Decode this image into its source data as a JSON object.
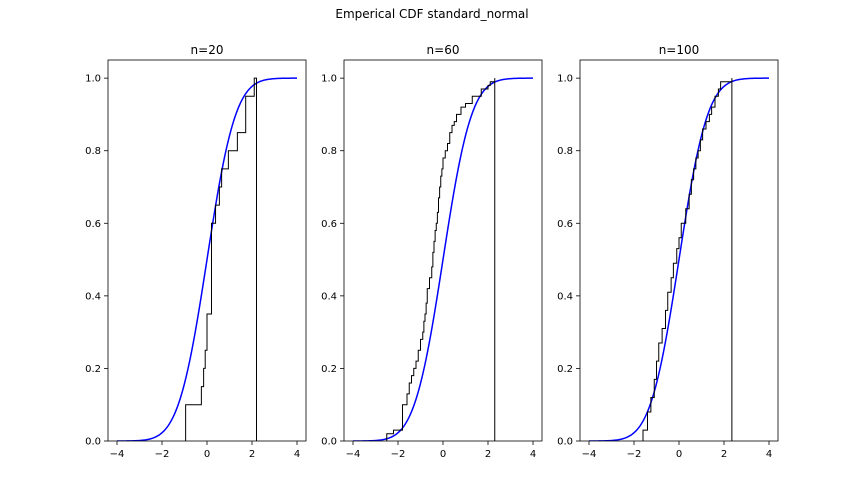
{
  "figure": {
    "title": "Emperical CDF standard_normal"
  },
  "chart_data": [
    {
      "type": "line",
      "title": "n=20",
      "xlim": [
        -4.4,
        4.4
      ],
      "ylim": [
        0.0,
        1.05
      ],
      "xticks": [
        -4,
        -2,
        0,
        2,
        4
      ],
      "xtick_labels": [
        "−4",
        "−2",
        "0",
        "2",
        "4"
      ],
      "yticks": [
        0.0,
        0.2,
        0.4,
        0.6,
        0.8,
        1.0
      ],
      "ytick_labels": [
        "0.0",
        "0.2",
        "0.4",
        "0.6",
        "0.8",
        "1.0"
      ],
      "grid": false,
      "series": [
        {
          "kind": "theoretical_cdf",
          "color": "#0000ff",
          "x_range": [
            -4,
            4
          ]
        },
        {
          "kind": "empirical_cdf_step",
          "color": "#000000",
          "x": [
            -0.95,
            -0.25,
            -0.15,
            -0.08,
            0.0,
            0.2,
            0.38,
            0.55,
            0.65,
            0.95,
            1.35,
            1.72,
            2.1,
            2.2
          ],
          "y": [
            0.1,
            0.15,
            0.2,
            0.25,
            0.35,
            0.6,
            0.65,
            0.7,
            0.75,
            0.8,
            0.85,
            0.95,
            1.0,
            0.0
          ]
        }
      ]
    },
    {
      "type": "line",
      "title": "n=60",
      "xlim": [
        -4.4,
        4.4
      ],
      "ylim": [
        0.0,
        1.05
      ],
      "xticks": [
        -4,
        -2,
        0,
        2,
        4
      ],
      "xtick_labels": [
        "−4",
        "−2",
        "0",
        "2",
        "4"
      ],
      "yticks": [
        0.0,
        0.2,
        0.4,
        0.6,
        0.8,
        1.0
      ],
      "ytick_labels": [
        "0.0",
        "0.2",
        "0.4",
        "0.6",
        "0.8",
        "1.0"
      ],
      "grid": false,
      "series": [
        {
          "kind": "theoretical_cdf",
          "color": "#0000ff",
          "x_range": [
            -4,
            4
          ]
        },
        {
          "kind": "empirical_cdf_step",
          "color": "#000000",
          "x": [
            -2.5,
            -2.2,
            -1.8,
            -1.6,
            -1.5,
            -1.4,
            -1.3,
            -1.2,
            -1.1,
            -1.0,
            -0.9,
            -0.85,
            -0.8,
            -0.75,
            -0.7,
            -0.6,
            -0.5,
            -0.45,
            -0.4,
            -0.35,
            -0.3,
            -0.25,
            -0.2,
            -0.15,
            -0.1,
            -0.05,
            0.0,
            0.1,
            0.2,
            0.3,
            0.4,
            0.5,
            0.6,
            0.8,
            1.0,
            1.3,
            1.7,
            2.0,
            2.1,
            2.2,
            2.3,
            2.3
          ],
          "y": [
            0.02,
            0.03,
            0.1,
            0.13,
            0.16,
            0.18,
            0.2,
            0.22,
            0.25,
            0.28,
            0.3,
            0.33,
            0.35,
            0.38,
            0.42,
            0.45,
            0.48,
            0.52,
            0.55,
            0.58,
            0.6,
            0.63,
            0.67,
            0.7,
            0.73,
            0.75,
            0.78,
            0.8,
            0.82,
            0.85,
            0.87,
            0.88,
            0.9,
            0.92,
            0.93,
            0.95,
            0.97,
            0.98,
            0.99,
            0.99,
            1.0,
            0.0
          ]
        }
      ]
    },
    {
      "type": "line",
      "title": "n=100",
      "xlim": [
        -4.4,
        4.4
      ],
      "ylim": [
        0.0,
        1.05
      ],
      "xticks": [
        -4,
        -2,
        0,
        2,
        4
      ],
      "xtick_labels": [
        "−4",
        "−2",
        "0",
        "2",
        "4"
      ],
      "yticks": [
        0.0,
        0.2,
        0.4,
        0.6,
        0.8,
        1.0
      ],
      "ytick_labels": [
        "0.0",
        "0.2",
        "0.4",
        "0.6",
        "0.8",
        "1.0"
      ],
      "grid": false,
      "series": [
        {
          "kind": "theoretical_cdf",
          "color": "#0000ff",
          "x_range": [
            -4,
            4
          ]
        },
        {
          "kind": "empirical_cdf_step",
          "color": "#000000",
          "x": [
            -1.6,
            -1.4,
            -1.25,
            -1.1,
            -1.0,
            -0.9,
            -0.75,
            -0.6,
            -0.5,
            -0.35,
            -0.25,
            -0.1,
            0.0,
            0.1,
            0.3,
            0.45,
            0.55,
            0.65,
            0.75,
            0.85,
            0.95,
            1.05,
            1.2,
            1.35,
            1.45,
            1.6,
            1.75,
            1.85,
            2.2,
            2.35,
            2.35
          ],
          "y": [
            0.03,
            0.08,
            0.12,
            0.17,
            0.22,
            0.27,
            0.31,
            0.36,
            0.41,
            0.45,
            0.49,
            0.53,
            0.56,
            0.6,
            0.64,
            0.68,
            0.72,
            0.75,
            0.78,
            0.8,
            0.83,
            0.86,
            0.88,
            0.9,
            0.92,
            0.95,
            0.97,
            0.99,
            0.99,
            1.0,
            0.0
          ]
        }
      ]
    }
  ]
}
